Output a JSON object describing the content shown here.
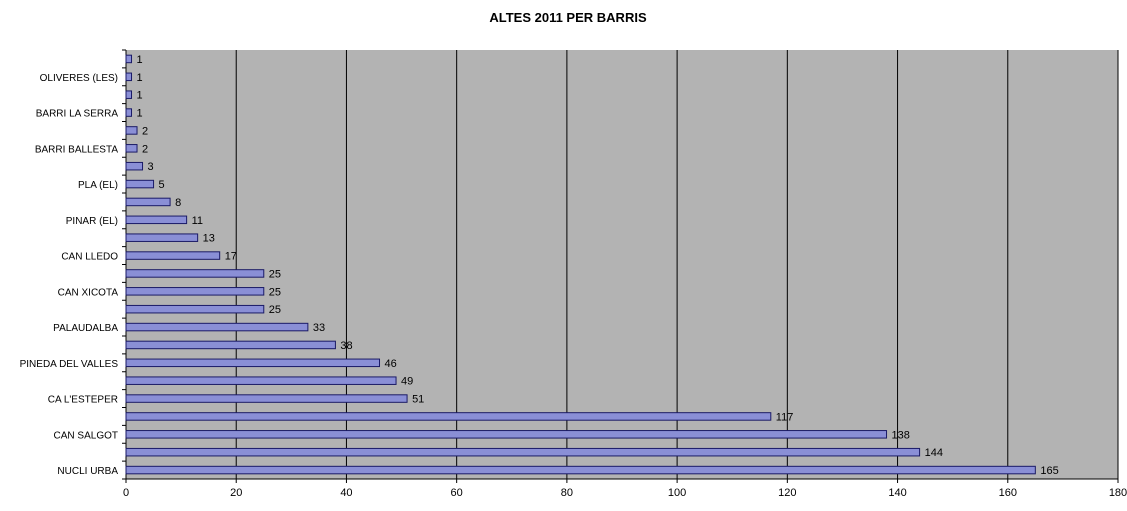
{
  "chart_data": {
    "type": "bar",
    "orientation": "horizontal",
    "title": "ALTES 2011 PER BARRIS",
    "xlabel": "",
    "ylabel": "",
    "xlim": [
      0,
      180
    ],
    "x_ticks": [
      "0",
      "20",
      "40",
      "60",
      "80",
      "100",
      "120",
      "140",
      "160",
      "180"
    ],
    "grid": true,
    "legend": "none",
    "plot_background": "#b3b3b3",
    "bar_color": "#8a8fd6",
    "bar_edge": "#1a1a66",
    "categories": [
      "NUCLI URBA",
      "",
      "CAN SALGOT",
      "",
      "CA L'ESTEPER",
      "",
      "PINEDA DEL VALLES",
      "",
      "PALAUDALBA",
      "",
      "CAN XICOTA",
      "",
      "CAN LLEDO",
      "",
      "PINAR (EL)",
      "",
      "PLA (EL)",
      "",
      "BARRI BALLESTA",
      "",
      "BARRI LA SERRA",
      "",
      "OLIVERES (LES)",
      ""
    ],
    "values": [
      165,
      144,
      138,
      117,
      51,
      49,
      46,
      38,
      33,
      25,
      25,
      25,
      17,
      13,
      11,
      8,
      5,
      3,
      2,
      2,
      1,
      1,
      1,
      1
    ]
  }
}
